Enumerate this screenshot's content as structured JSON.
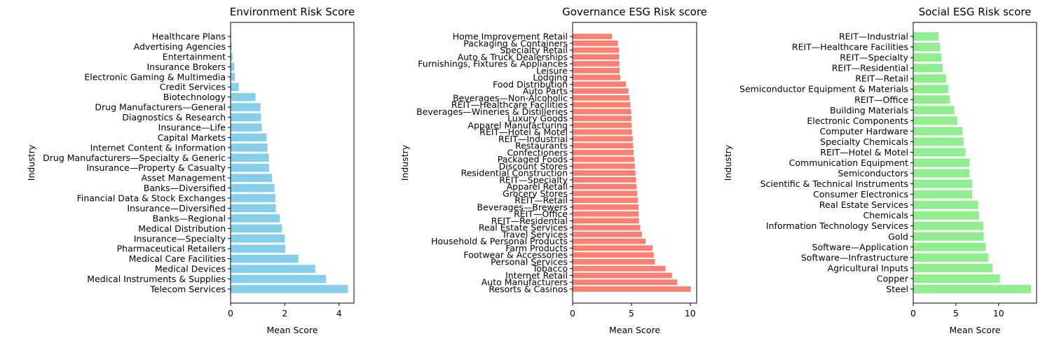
{
  "chart_data": [
    {
      "type": "bar",
      "orientation": "horizontal",
      "title": "Environment Risk Score",
      "xlabel": "Mean Score",
      "ylabel": "Industry",
      "xlim": [
        0,
        4.55
      ],
      "xticks": [
        0,
        2,
        4
      ],
      "color": "#87ceeb",
      "categories": [
        "Telecom Services",
        "Medical Instruments & Supplies",
        "Medical Devices",
        "Medical Care Facilities",
        "Pharmaceutical Retailers",
        "Insurance—Specialty",
        "Medical Distribution",
        "Banks—Regional",
        "Insurance—Diversified",
        "Financial Data & Stock Exchanges",
        "Banks—Diversified",
        "Asset Management",
        "Insurance—Property & Casualty",
        "Drug Manufacturers—Specialty & Generic",
        "Internet Content & Information",
        "Capital Markets",
        "Insurance—Life",
        "Diagnostics & Research",
        "Drug Manufacturers—General",
        "Biotechnology",
        "Credit Services",
        "Electronic Gaming & Multimedia",
        "Insurance Brokers",
        "Entertainment",
        "Advertising Agencies",
        "Healthcare Plans"
      ],
      "values": [
        4.33,
        3.52,
        3.12,
        2.5,
        2.02,
        2.0,
        1.9,
        1.82,
        1.67,
        1.65,
        1.62,
        1.53,
        1.42,
        1.41,
        1.36,
        1.33,
        1.15,
        1.12,
        1.1,
        0.92,
        0.3,
        0.16,
        0.13,
        0.07,
        0.04,
        0.02
      ]
    },
    {
      "type": "bar",
      "orientation": "horizontal",
      "title": "Governance ESG Risk score",
      "xlabel": "Mean Score",
      "ylabel": "Industry",
      "xlim": [
        0,
        10.55
      ],
      "xticks": [
        0,
        5,
        10
      ],
      "color": "#fa8072",
      "categories": [
        "Resorts & Casinos",
        "Auto Manufacturers",
        "Internet Retail",
        "Tobacco",
        "Personal Services",
        "Footwear & Accessories",
        "Farm Products",
        "Household & Personal Products",
        "Travel Services",
        "Real Estate Services",
        "REIT—Residential",
        "REIT—Office",
        "Beverages—Brewers",
        "REIT—Retail",
        "Grocery Stores",
        "Apparel Retail",
        "REIT—Specialty",
        "Residential Construction",
        "Discount Stores",
        "Packaged Foods",
        "Confectioners",
        "Restaurants",
        "REIT—Industrial",
        "REIT—Hotel & Motel",
        "Apparel Manufacturing",
        "Luxury Goods",
        "Beverages—Wineries & Distilleries",
        "REIT—Healthcare Facilities",
        "Beverages—Non-Alcoholic",
        "Auto Parts",
        "Food Distribution",
        "Lodging",
        "Leisure",
        "Furnishings, Fixtures & Appliances",
        "Auto & Truck Dealerships",
        "Specialty Retail",
        "Packaging & Containers",
        "Home Improvement Retail"
      ],
      "values": [
        10.05,
        8.9,
        8.45,
        7.9,
        7.0,
        6.9,
        6.8,
        6.2,
        5.9,
        5.75,
        5.65,
        5.62,
        5.6,
        5.55,
        5.5,
        5.45,
        5.4,
        5.35,
        5.3,
        5.25,
        5.2,
        5.15,
        5.12,
        5.05,
        5.02,
        5.0,
        4.98,
        4.92,
        4.85,
        4.75,
        4.55,
        4.05,
        4.0,
        3.98,
        3.96,
        3.95,
        3.85,
        3.35
      ]
    },
    {
      "type": "bar",
      "orientation": "horizontal",
      "title": "Social ESG Risk score",
      "xlabel": "Mean Score",
      "ylabel": "Industry",
      "xlim": [
        0,
        14.45
      ],
      "xticks": [
        0,
        5,
        10
      ],
      "color": "#90ee90",
      "categories": [
        "Steel",
        "Copper",
        "Agricultural Inputs",
        "Software—Infrastructure",
        "Software—Application",
        "Gold",
        "Information Technology Services",
        "Chemicals",
        "Real Estate Services",
        "Consumer Electronics",
        "Scientific & Technical Instruments",
        "Semiconductors",
        "Communication Equipment",
        "REIT—Hotel & Motel",
        "Specialty Chemicals",
        "Computer Hardware",
        "Electronic Components",
        "Building Materials",
        "REIT—Office",
        "Semiconductor Equipment & Materials",
        "REIT—Retail",
        "REIT—Residential",
        "REIT—Specialty",
        "REIT—Healthcare Facilities",
        "REIT—Industrial"
      ],
      "values": [
        13.8,
        10.15,
        9.3,
        8.8,
        8.5,
        8.25,
        8.2,
        7.7,
        7.6,
        6.9,
        6.9,
        6.6,
        6.6,
        6.1,
        5.9,
        5.75,
        5.15,
        4.8,
        4.3,
        4.1,
        3.85,
        3.45,
        3.3,
        3.15,
        2.95
      ]
    }
  ]
}
